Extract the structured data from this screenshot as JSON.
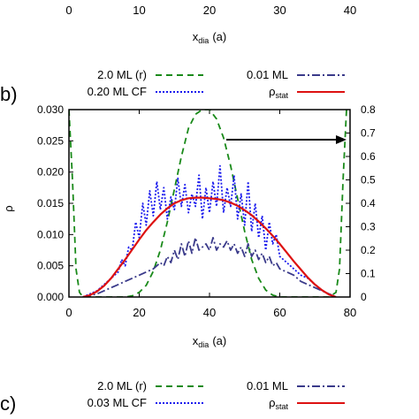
{
  "chart_data": [
    {
      "panel": "top",
      "type": "line",
      "x_ticks": [
        "0",
        "10",
        "20",
        "30",
        "40"
      ],
      "x_tick_values": [
        0,
        10,
        20,
        30,
        40
      ],
      "xlim": [
        0,
        40
      ],
      "xlabel_main": "x",
      "xlabel_sub": "dia",
      "xlabel_unit": "(a)"
    },
    {
      "panel": "b",
      "panel_label": "b)",
      "type": "line",
      "xlim": [
        0,
        80
      ],
      "ylim_left": [
        0,
        0.03
      ],
      "ylim_right": [
        0,
        0.8
      ],
      "x_ticks": [
        "0",
        "20",
        "40",
        "60",
        "80"
      ],
      "x_tick_values": [
        0,
        20,
        40,
        60,
        80
      ],
      "y_ticks": [
        "0.000",
        "0.005",
        "0.010",
        "0.015",
        "0.020",
        "0.025",
        "0.030"
      ],
      "y_tick_values": [
        0,
        0.005,
        0.01,
        0.015,
        0.02,
        0.025,
        0.03
      ],
      "y2_ticks": [
        "0",
        "0.1",
        "0.2",
        "0.3",
        "0.4",
        "0.5",
        "0.6",
        "0.7",
        "0.8"
      ],
      "y2_tick_values": [
        0,
        0.1,
        0.2,
        0.3,
        0.4,
        0.5,
        0.6,
        0.7,
        0.8
      ],
      "ylabel": "ρ",
      "xlabel_main": "x",
      "xlabel_sub": "dia",
      "xlabel_unit": "(a)",
      "legend_placement": "top",
      "series": [
        {
          "name": "2.0 ML (r)",
          "color": "#1a8a1a",
          "style": "dashed",
          "axis": "right",
          "x": [
            0,
            1,
            2,
            3,
            4,
            6,
            8,
            10,
            12,
            14,
            16,
            18,
            20,
            22,
            24,
            26,
            28,
            30,
            32,
            34,
            36,
            38,
            40,
            42,
            44,
            46,
            48,
            50,
            52,
            54,
            56,
            58,
            60,
            62,
            64,
            66,
            68,
            70,
            72,
            74,
            76,
            77,
            78,
            79,
            80
          ],
          "y": [
            0.8,
            0.5,
            0.12,
            0.02,
            0.0,
            0.0,
            0.0,
            0.0,
            0.0,
            0.0,
            0.0,
            0.005,
            0.02,
            0.05,
            0.11,
            0.2,
            0.32,
            0.46,
            0.6,
            0.72,
            0.78,
            0.8,
            0.8,
            0.76,
            0.68,
            0.56,
            0.42,
            0.28,
            0.16,
            0.08,
            0.03,
            0.008,
            0.0,
            0.0,
            0.0,
            0.0,
            0.0,
            0.0,
            0.0,
            0.0,
            0.02,
            0.12,
            0.5,
            0.8,
            0.8
          ]
        },
        {
          "name": "0.20 ML CF",
          "color": "#1a1aee",
          "style": "dotted",
          "axis": "left",
          "x": [
            4,
            6,
            8,
            10,
            12,
            14,
            15,
            16,
            17,
            18,
            19,
            20,
            21,
            22,
            23,
            24,
            25,
            26,
            27,
            28,
            29,
            30,
            31,
            32,
            33,
            34,
            35,
            36,
            37,
            38,
            39,
            40,
            41,
            42,
            43,
            44,
            45,
            46,
            47,
            48,
            49,
            50,
            51,
            52,
            53,
            54,
            55,
            56,
            57,
            58,
            59,
            60,
            62,
            64,
            66,
            68,
            70,
            72,
            74,
            76
          ],
          "y": [
            0.0,
            0.0005,
            0.001,
            0.002,
            0.003,
            0.004,
            0.006,
            0.005,
            0.008,
            0.0075,
            0.012,
            0.0095,
            0.015,
            0.0115,
            0.017,
            0.013,
            0.0185,
            0.014,
            0.0175,
            0.0125,
            0.016,
            0.014,
            0.019,
            0.0145,
            0.018,
            0.0135,
            0.0165,
            0.0145,
            0.0195,
            0.0125,
            0.0175,
            0.0135,
            0.0185,
            0.0145,
            0.021,
            0.0135,
            0.0175,
            0.0145,
            0.0195,
            0.0125,
            0.0165,
            0.0115,
            0.0185,
            0.0105,
            0.015,
            0.0095,
            0.013,
            0.0075,
            0.012,
            0.0085,
            0.01,
            0.0065,
            0.0055,
            0.0045,
            0.0035,
            0.003,
            0.002,
            0.001,
            0.0005,
            0.0
          ]
        },
        {
          "name": "0.01 ML",
          "color": "#3a3a8a",
          "style": "dash-dot",
          "axis": "left",
          "x": [
            4,
            8,
            10,
            12,
            14,
            16,
            18,
            20,
            22,
            24,
            26,
            27,
            28,
            29,
            30,
            31,
            32,
            33,
            34,
            35,
            36,
            37,
            38,
            39,
            40,
            41,
            42,
            43,
            44,
            45,
            46,
            47,
            48,
            49,
            50,
            51,
            52,
            53,
            54,
            55,
            56,
            57,
            58,
            59,
            60,
            62,
            64,
            66,
            68,
            70,
            72,
            74,
            76
          ],
          "y": [
            0.0,
            0.0005,
            0.001,
            0.0015,
            0.002,
            0.0025,
            0.003,
            0.0035,
            0.004,
            0.0045,
            0.0055,
            0.005,
            0.0065,
            0.0055,
            0.0075,
            0.006,
            0.0085,
            0.0065,
            0.009,
            0.007,
            0.0095,
            0.0075,
            0.008,
            0.0085,
            0.0075,
            0.0095,
            0.0075,
            0.0085,
            0.008,
            0.009,
            0.0075,
            0.0085,
            0.007,
            0.008,
            0.0065,
            0.0085,
            0.0065,
            0.0075,
            0.006,
            0.007,
            0.0055,
            0.0065,
            0.005,
            0.0055,
            0.0045,
            0.004,
            0.0035,
            0.0025,
            0.002,
            0.0015,
            0.001,
            0.0005,
            0.0
          ]
        },
        {
          "name": "ρ_stat",
          "name_main": "ρ",
          "name_sub": "stat",
          "color": "#dd1111",
          "style": "solid",
          "axis": "left",
          "x": [
            4,
            6,
            8,
            10,
            12,
            14,
            16,
            18,
            20,
            22,
            24,
            26,
            28,
            30,
            32,
            34,
            36,
            38,
            40,
            42,
            44,
            46,
            48,
            50,
            52,
            54,
            56,
            58,
            60,
            62,
            64,
            66,
            68,
            70,
            72,
            74,
            76
          ],
          "y": [
            0.0,
            0.0003,
            0.0009,
            0.0018,
            0.003,
            0.0045,
            0.006,
            0.0076,
            0.0092,
            0.0107,
            0.012,
            0.0132,
            0.0142,
            0.015,
            0.0155,
            0.0158,
            0.0159,
            0.0159,
            0.0158,
            0.0157,
            0.0155,
            0.0151,
            0.0146,
            0.0139,
            0.0131,
            0.0121,
            0.011,
            0.0098,
            0.0085,
            0.0071,
            0.0057,
            0.0044,
            0.0031,
            0.002,
            0.0011,
            0.0004,
            0.0
          ]
        }
      ]
    },
    {
      "panel": "c",
      "panel_label": "c)",
      "type": "line",
      "legend_placement": "top",
      "series": [
        {
          "name": "2.0 ML (r)",
          "color": "#1a8a1a",
          "style": "dashed"
        },
        {
          "name": "0.03 ML CF",
          "color": "#1a1aee",
          "style": "dotted"
        },
        {
          "name": "0.01 ML",
          "color": "#3a3a8a",
          "style": "dash-dot"
        },
        {
          "name": "ρ_stat",
          "name_main": "ρ",
          "name_sub": "stat",
          "color": "#dd1111",
          "style": "solid"
        }
      ]
    }
  ]
}
